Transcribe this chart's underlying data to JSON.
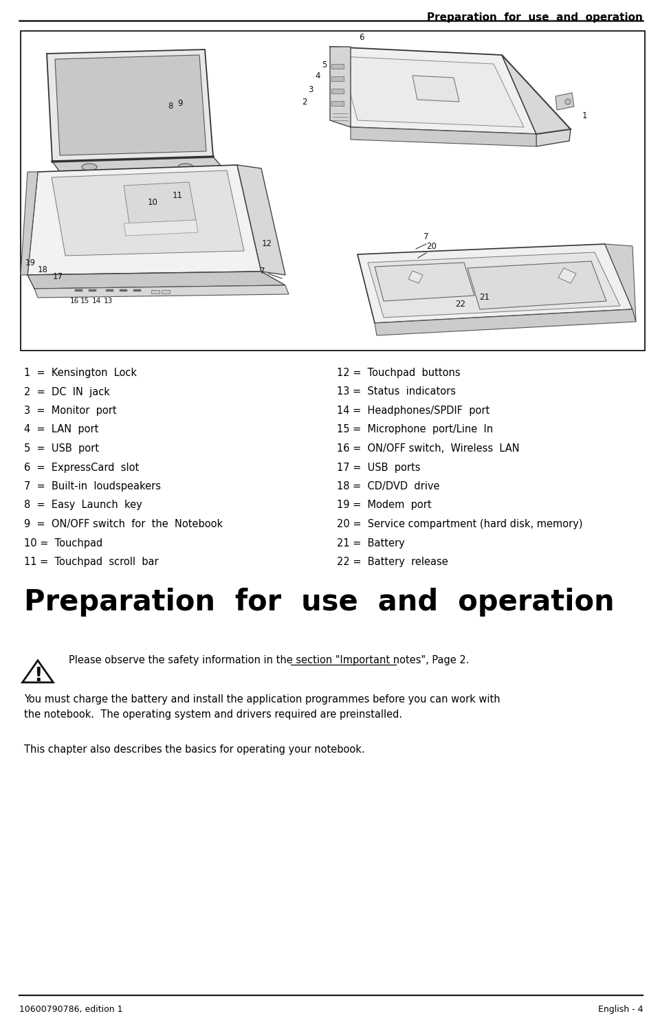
{
  "header_title": "Preparation  for  use  and  operation",
  "footer_left": "10600790786, edition 1",
  "footer_right": "English - 4",
  "left_items": [
    "1  =  Kensington  Lock",
    "2  =  DC  IN  jack",
    "3  =  Monitor  port",
    "4  =  LAN  port",
    "5  =  USB  port",
    "6  =  ExpressCard  slot",
    "7  =  Built-in  loudspeakers",
    "8  =  Easy  Launch  key",
    "9  =  ON/OFF switch  for  the  Notebook",
    "10 =  Touchpad",
    "11 =  Touchpad  scroll  bar"
  ],
  "right_items": [
    "12 =  Touchpad  buttons",
    "13 =  Status  indicators",
    "14 =  Headphones/SPDIF  port",
    "15 =  Microphone  port/Line  In",
    "16 =  ON/OFF switch,  Wireless  LAN",
    "17 =  USB  ports",
    "18 =  CD/DVD  drive",
    "19 =  Modem  port",
    "20 =  Service compartment (hard disk, memory)",
    "21 =  Battery",
    "22 =  Battery  release"
  ],
  "section_title": "Preparation  for  use  and  operation",
  "warning_text": "Please observe the safety information in the section ",
  "warning_link": "\"Important notes\", Page 2",
  "body_text1": "You must charge the battery and install the application programmes before you can work with\nthe notebook.  The operating system and drivers required are preinstalled.",
  "body_text2": "This chapter also describes the basics for operating your notebook.",
  "bg_color": "#ffffff",
  "text_color": "#000000",
  "border_color": "#000000",
  "line_color": "#1a1a1a",
  "header_font_size": 11,
  "item_font_size": 10.5,
  "section_title_font_size": 30,
  "footer_font_size": 9
}
